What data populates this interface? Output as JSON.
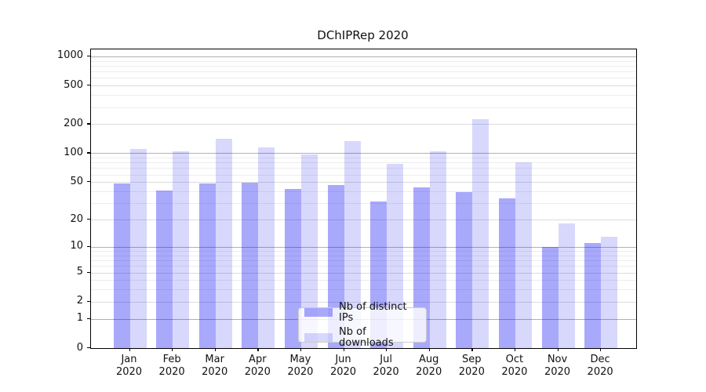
{
  "title": "DChIPRep 2020",
  "chart_data": {
    "type": "bar",
    "title": "DChIPRep 2020",
    "year_label": "2020",
    "categories": [
      "Jan",
      "Feb",
      "Mar",
      "Apr",
      "May",
      "Jun",
      "Jul",
      "Aug",
      "Sep",
      "Oct",
      "Nov",
      "Dec"
    ],
    "series": [
      {
        "name": "Nb of distinct IPs",
        "color": "rgba(10,10,245,0.35)",
        "values": [
          48,
          41,
          48,
          49,
          42,
          47,
          31,
          44,
          39,
          34,
          10,
          11
        ]
      },
      {
        "name": "Nb of downloads",
        "color": "rgba(10,10,245,0.16)",
        "values": [
          110,
          104,
          142,
          115,
          98,
          133,
          78,
          105,
          225,
          81,
          18,
          13
        ]
      }
    ],
    "yscale": "log1p",
    "ylim": [
      0,
      1180
    ],
    "y_ticks": [
      1000,
      500,
      200,
      100,
      50,
      20,
      10,
      5,
      2,
      1,
      0
    ],
    "grid": {
      "on": true,
      "major_color": "#b1b1b1",
      "mid_color": "#dcdcdc",
      "minor_color": "#ededed"
    },
    "legend": {
      "position": "lower-center"
    }
  }
}
